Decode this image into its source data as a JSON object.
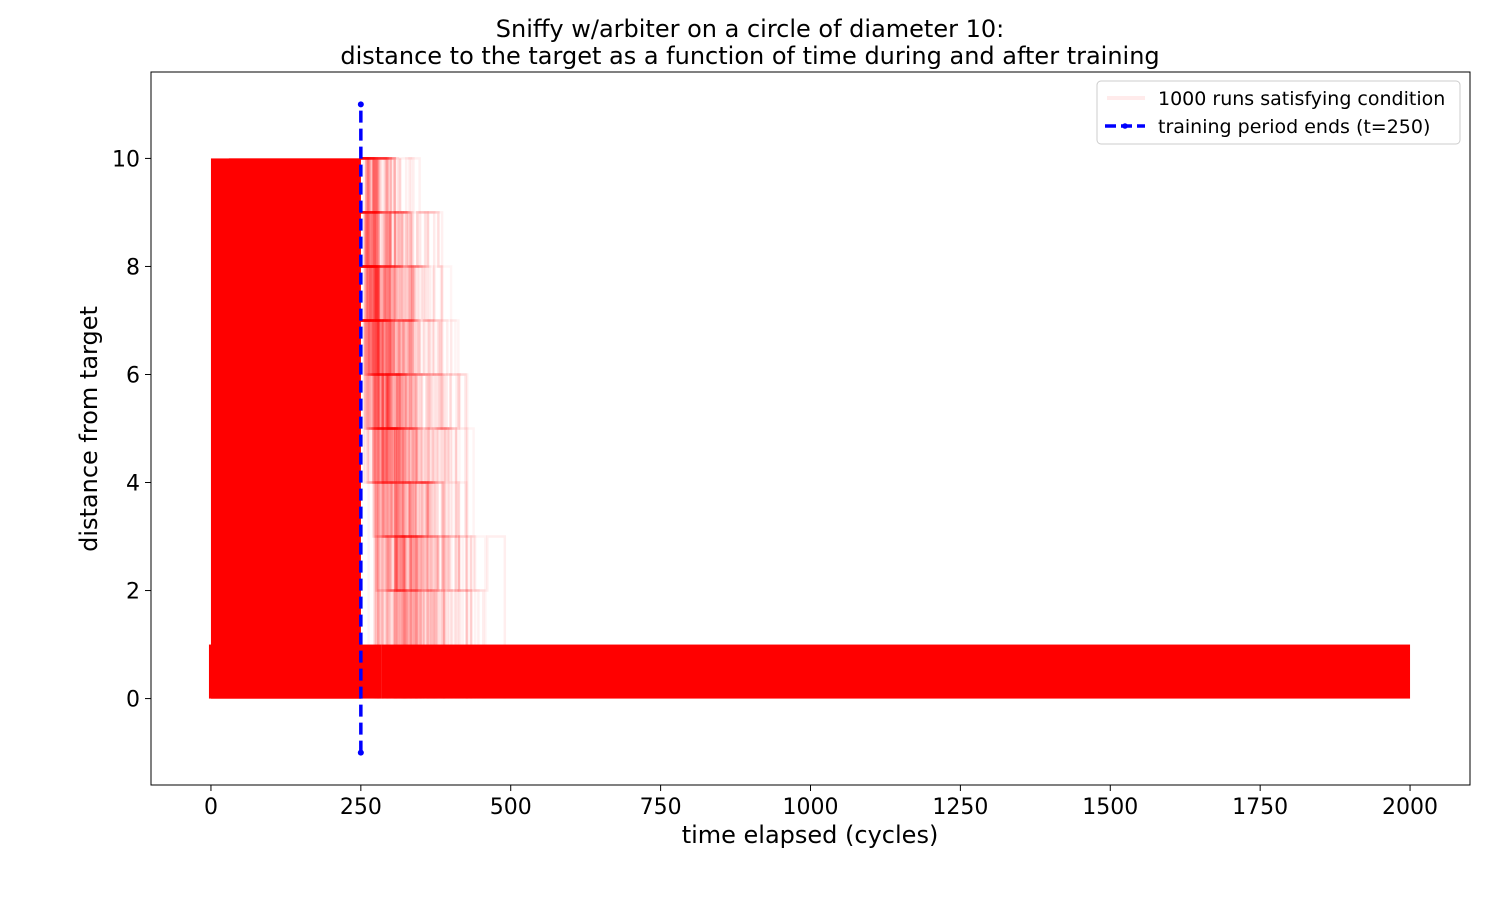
{
  "chart_data": {
    "type": "line",
    "title_lines": [
      "Sniffy w/arbiter on a circle of diameter 10:",
      "distance to the target as a function of time during and after training"
    ],
    "xlabel": "time elapsed (cycles)",
    "ylabel": "distance from target",
    "xlim": [
      -100,
      2100
    ],
    "ylim": [
      -1.6,
      11.6
    ],
    "xticks": [
      0,
      250,
      500,
      750,
      1000,
      1250,
      1500,
      1750,
      2000
    ],
    "xtick_labels": [
      "0",
      "250",
      "500",
      "750",
      "1000",
      "1250",
      "1500",
      "1750",
      "2000"
    ],
    "yticks": [
      0,
      2,
      4,
      6,
      8,
      10
    ],
    "ytick_labels": [
      "0",
      "2",
      "4",
      "6",
      "8",
      "10"
    ],
    "grid": false,
    "legend_position": "top-right",
    "series": [
      {
        "name": "1000 runs satisfying condition",
        "color": "#ff0000",
        "alpha": 0.05,
        "description_points": {
          "saturated_region": {
            "x": [
              0,
              250
            ],
            "y": [
              0,
              10
            ]
          },
          "rise": {
            "x": [
              0,
              0,
              5,
              10,
              15,
              20,
              25,
              30
            ],
            "y": [
              0,
              1,
              3,
              5,
              6,
              8,
              9,
              10
            ]
          },
          "decay_tail_end_x": 690,
          "post_training_band": {
            "x": [
              285,
              2000
            ],
            "y": [
              0,
              1
            ]
          }
        }
      },
      {
        "name": "training period ends (t=250)",
        "color": "#0000ff",
        "style": "dashed",
        "x": [
          250,
          250
        ],
        "y": [
          -1,
          11
        ]
      }
    ]
  }
}
